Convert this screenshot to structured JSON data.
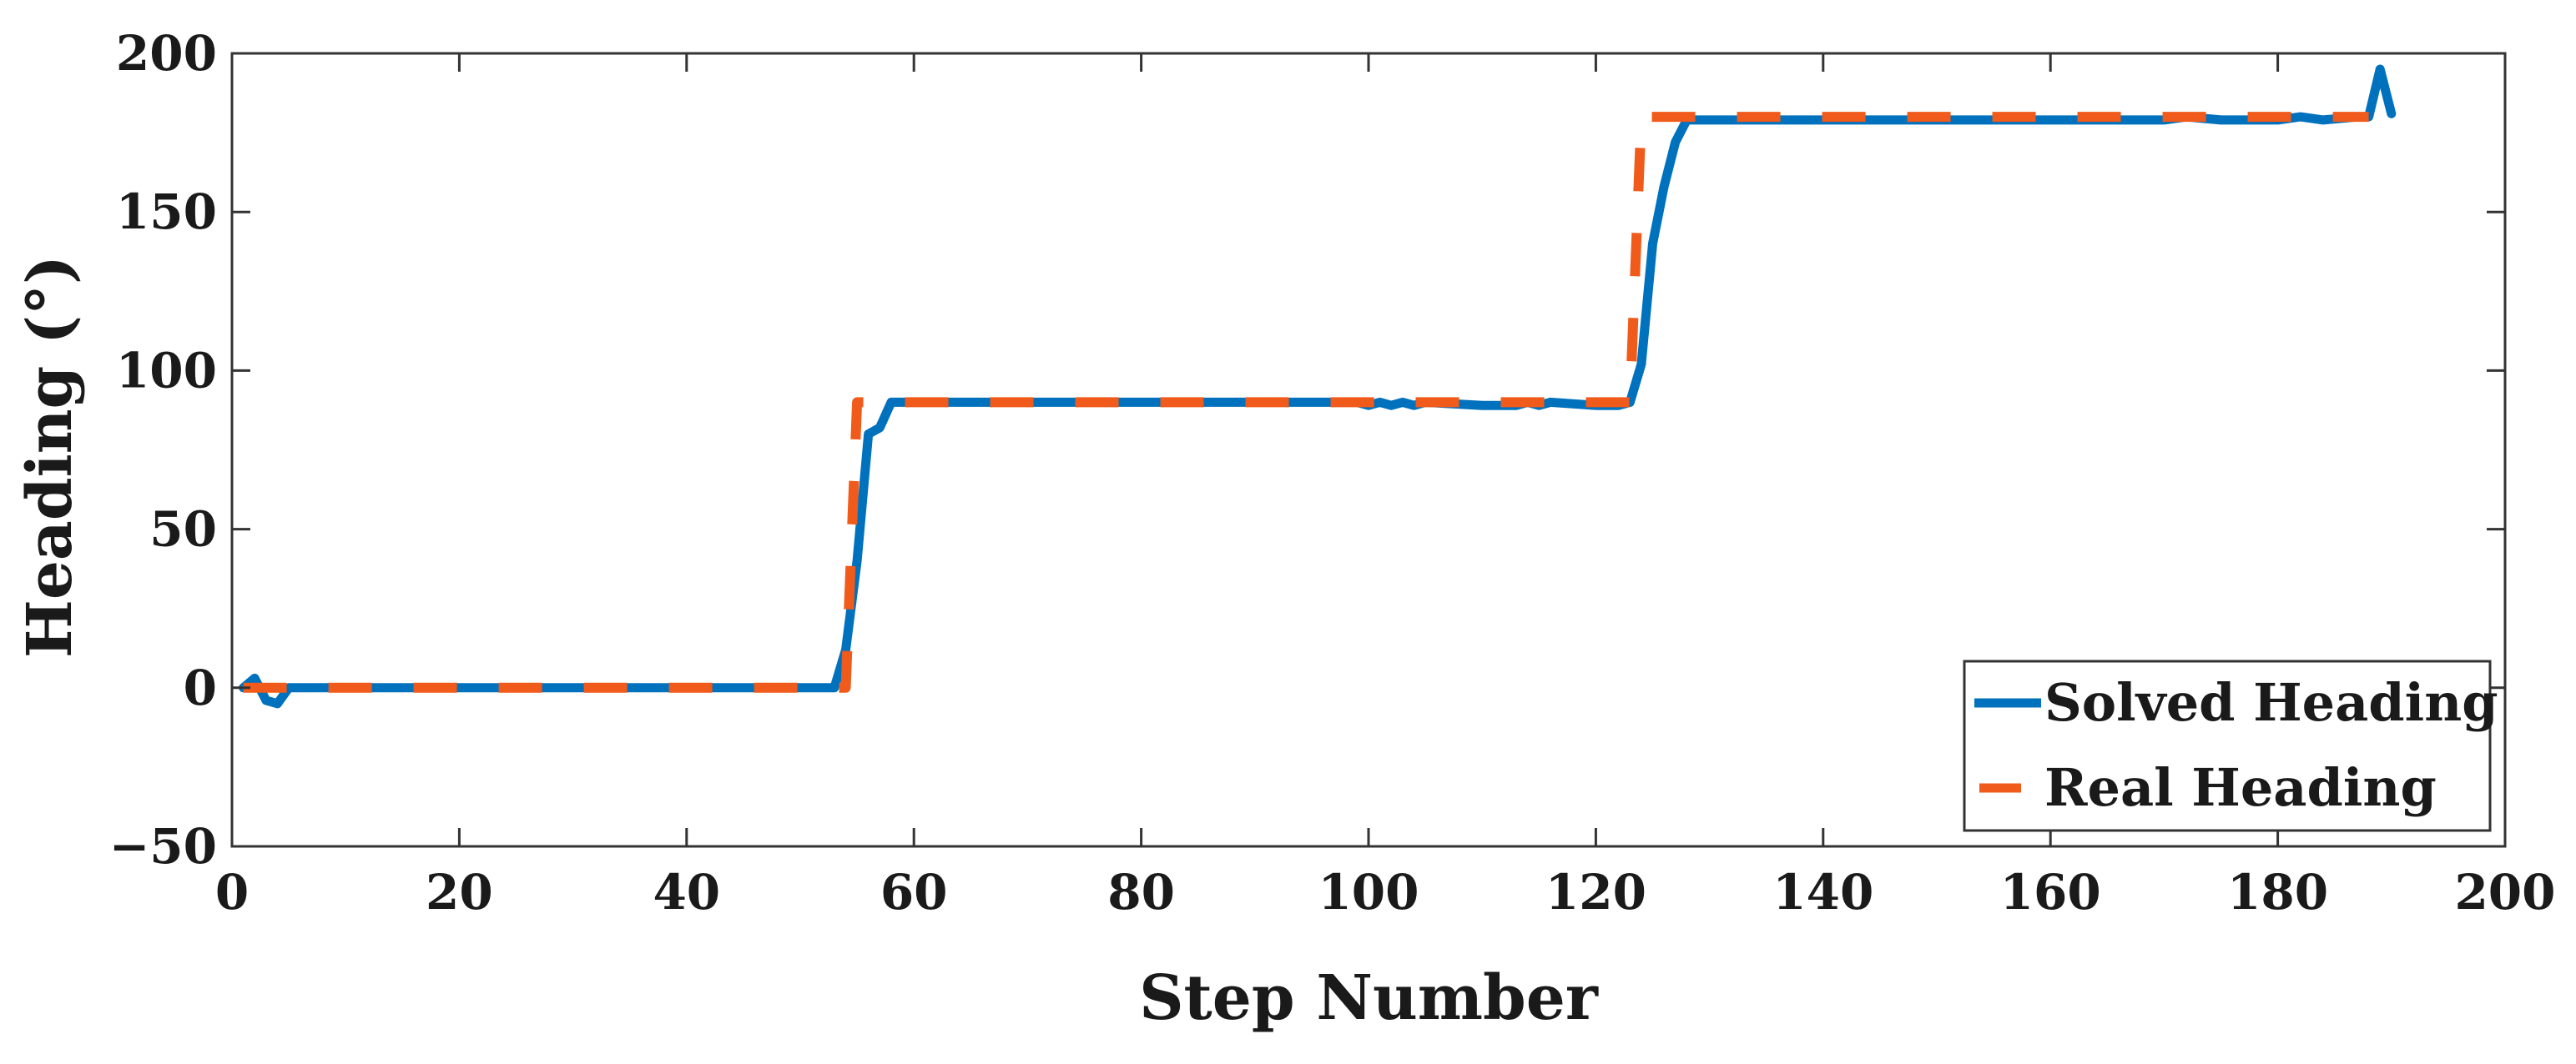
{
  "chart_data": {
    "type": "line",
    "title": "",
    "xlabel": "Step Number",
    "ylabel": "Heading (°)",
    "xlim": [
      0,
      200
    ],
    "ylim": [
      -50,
      200
    ],
    "xticks": [
      0,
      20,
      40,
      60,
      80,
      100,
      120,
      140,
      160,
      180,
      200
    ],
    "yticks": [
      -50,
      0,
      50,
      100,
      150,
      200
    ],
    "xtick_labels": [
      "0",
      "20",
      "40",
      "60",
      "80",
      "100",
      "120",
      "140",
      "160",
      "180",
      "200"
    ],
    "ytick_labels": [
      "−50",
      "0",
      "50",
      "100",
      "150",
      "200"
    ],
    "grid": false,
    "legend_position": "bottom-right",
    "series": [
      {
        "name": "Solved Heading",
        "color": "#0072BD",
        "style": "solid",
        "x": [
          1,
          2,
          3,
          4,
          5,
          6,
          8,
          10,
          15,
          20,
          30,
          40,
          50,
          53,
          54,
          55,
          56,
          57,
          58,
          59,
          60,
          70,
          80,
          90,
          95,
          99,
          100,
          101,
          102,
          103,
          104,
          105,
          110,
          113,
          114,
          115,
          116,
          120,
          122,
          123,
          124,
          125,
          126,
          127,
          128,
          130,
          140,
          150,
          160,
          170,
          172,
          175,
          180,
          182,
          184,
          187,
          188,
          189,
          190
        ],
        "y": [
          0,
          3,
          -4,
          -5,
          0,
          0,
          0,
          0,
          0,
          0,
          0,
          0,
          0,
          0,
          12,
          40,
          80,
          82,
          90,
          90,
          90,
          90,
          90,
          90,
          90,
          90,
          89,
          90,
          89,
          90,
          89,
          90,
          89,
          89,
          90,
          89,
          90,
          89,
          89,
          90,
          102,
          140,
          158,
          172,
          179,
          179,
          179,
          179,
          179,
          179,
          180,
          179,
          179,
          180,
          179,
          180,
          180,
          195,
          181
        ]
      },
      {
        "name": "Real Heading",
        "color": "#F05A1A",
        "style": "dashed",
        "x": [
          1,
          54,
          55,
          123,
          124,
          188
        ],
        "y": [
          0,
          0,
          90,
          90,
          180,
          180
        ]
      }
    ]
  }
}
